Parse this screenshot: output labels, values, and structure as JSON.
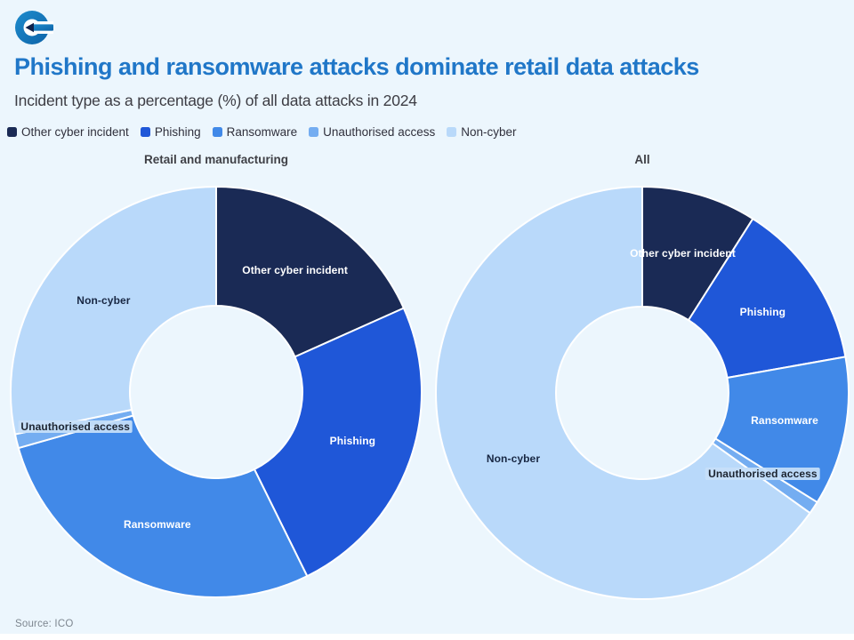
{
  "page": {
    "background_color": "#ecf6fd",
    "accent_color": "#2077c8"
  },
  "header": {
    "title": "Phishing and ransomware attacks dominate retail data attacks",
    "subtitle": "Incident type as a percentage (%) of all data attacks in 2024",
    "title_color": "#2077c8",
    "logo_colors": {
      "ring": "#1276bb",
      "arrow": "#10224a",
      "window": "#ffffff"
    }
  },
  "legend": {
    "items": [
      {
        "label": "Other cyber incident",
        "color": "#1a2a55"
      },
      {
        "label": "Phishing",
        "color": "#1f57d8"
      },
      {
        "label": "Ransomware",
        "color": "#4189e8"
      },
      {
        "label": "Unauthorised access",
        "color": "#74adf1"
      },
      {
        "label": "Non-cyber",
        "color": "#b9d9fa"
      }
    ]
  },
  "chart_data": [
    {
      "type": "pie",
      "donut": true,
      "title": "Retail and manufacturing",
      "unit": "%",
      "categories": [
        "Other cyber incident",
        "Phishing",
        "Ransomware",
        "Unauthorised access",
        "Non-cyber"
      ],
      "values": [
        18.3,
        24.4,
        27.9,
        1.1,
        28.3
      ],
      "colors": [
        "#1a2a55",
        "#1f57d8",
        "#4189e8",
        "#74adf1",
        "#b9d9fa"
      ],
      "label_styles": [
        "light",
        "light",
        "light",
        "chip",
        "dark"
      ],
      "start_angle_deg": 0,
      "direction": "clockwise",
      "hole_color": "#f8fcff",
      "separator_color": "#ffffff"
    },
    {
      "type": "pie",
      "donut": true,
      "title": "All",
      "unit": "%",
      "categories": [
        "Other cyber incident",
        "Phishing",
        "Ransomware",
        "Unauthorised access",
        "Non-cyber"
      ],
      "values": [
        9.0,
        13.2,
        11.7,
        1.0,
        65.1
      ],
      "colors": [
        "#1a2a55",
        "#1f57d8",
        "#4189e8",
        "#74adf1",
        "#b9d9fa"
      ],
      "label_styles": [
        "light",
        "light",
        "light",
        "chip",
        "dark"
      ],
      "start_angle_deg": 0,
      "direction": "clockwise",
      "hole_color": "#f8fcff",
      "separator_color": "#ffffff"
    }
  ],
  "source": {
    "label": "Source: ICO"
  }
}
